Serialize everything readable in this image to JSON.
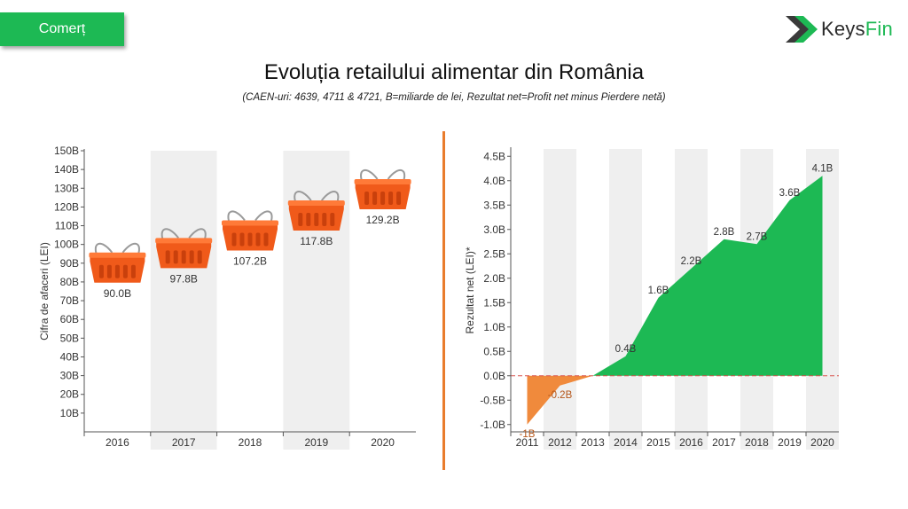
{
  "header": {
    "category_tag": "Comerț",
    "logo_text_dark": "Keys",
    "logo_text_green": "Fin",
    "title": "Evoluția retailului alimentar din România",
    "subtitle": "(CAEN-uri: 4639, 4711 & 4721, B=miliarde de lei, Rezultat net=Profit net minus Pierdere netă)"
  },
  "colors": {
    "brand_green": "#1db954",
    "basket_orange": "#f05a1a",
    "loss_orange": "#f08a3c",
    "band_grey": "#efefef",
    "divider_orange": "#e97c2c",
    "zero_line": "#d9534f"
  },
  "chart_data": [
    {
      "type": "bar",
      "marker": "basket-icon",
      "ylabel": "Cifra de afaceri (LEI)",
      "categories": [
        "2016",
        "2017",
        "2018",
        "2019",
        "2020"
      ],
      "values": [
        90.0,
        97.8,
        107.2,
        117.8,
        129.2
      ],
      "value_labels": [
        "90.0B",
        "97.8B",
        "107.2B",
        "117.8B",
        "129.2B"
      ],
      "yticks": [
        10,
        20,
        30,
        40,
        50,
        60,
        70,
        80,
        90,
        100,
        110,
        120,
        130,
        140,
        150
      ],
      "ytick_labels": [
        "10B",
        "20B",
        "30B",
        "40B",
        "50B",
        "60B",
        "70B",
        "80B",
        "90B",
        "100B",
        "110B",
        "120B",
        "130B",
        "140B",
        "150B"
      ],
      "ylim": [
        0,
        150
      ]
    },
    {
      "type": "area",
      "ylabel": "Rezultat net (LEI)*",
      "categories": [
        "2011",
        "2012",
        "2013",
        "2014",
        "2015",
        "2016",
        "2017",
        "2018",
        "2019",
        "2020"
      ],
      "values": [
        -1.0,
        -0.2,
        0.0,
        0.4,
        1.6,
        2.2,
        2.8,
        2.7,
        3.6,
        4.1
      ],
      "value_labels": [
        "-1B",
        "-0.2B",
        "",
        "0.4B",
        "1.6B",
        "2.2B",
        "2.8B",
        "2.7B",
        "3.6B",
        "4.1B"
      ],
      "yticks": [
        -1.0,
        -0.5,
        0.0,
        0.5,
        1.0,
        1.5,
        2.0,
        2.5,
        3.0,
        3.5,
        4.0,
        4.5
      ],
      "ytick_labels": [
        "-1.0B",
        "-0.5B",
        "0.0B",
        "0.5B",
        "1.0B",
        "1.5B",
        "2.0B",
        "2.5B",
        "3.0B",
        "3.5B",
        "4.0B",
        "4.5B"
      ],
      "ylim": [
        -1.15,
        4.65
      ]
    }
  ]
}
